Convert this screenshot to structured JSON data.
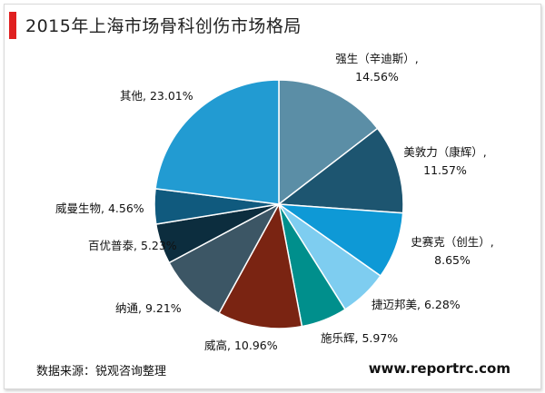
{
  "title": "2015年上海市场骨科创伤市场格局",
  "source": "数据来源：锐观咨询整理",
  "site": "www.reportrc.com",
  "chart_data": {
    "type": "pie",
    "title": "2015年上海市场骨科创伤市场格局",
    "slices": [
      {
        "label_lines": [
          "强生（辛迪斯）,",
          "14.56%"
        ],
        "name": "强生（辛迪斯）",
        "value": 14.56,
        "color": "#5b8ea6"
      },
      {
        "label_lines": [
          "美敦力（康辉）,",
          "11.57%"
        ],
        "name": "美敦力（康辉）",
        "value": 11.57,
        "color": "#1d5570"
      },
      {
        "label_lines": [
          "史赛克（创生）,",
          "8.65%"
        ],
        "name": "史赛克（创生）",
        "value": 8.65,
        "color": "#0e99d6"
      },
      {
        "label_lines": [
          "捷迈邦美, 6.28%"
        ],
        "name": "捷迈邦美",
        "value": 6.28,
        "color": "#7ecdf0"
      },
      {
        "label_lines": [
          "施乐辉, 5.97%"
        ],
        "name": "施乐辉",
        "value": 5.97,
        "color": "#008f8c"
      },
      {
        "label_lines": [
          "威高, 10.96%"
        ],
        "name": "威高",
        "value": 10.96,
        "color": "#7a2412"
      },
      {
        "label_lines": [
          "纳通, 9.21%"
        ],
        "name": "纳通",
        "value": 9.21,
        "color": "#3c5665"
      },
      {
        "label_lines": [
          "百优普泰, 5.23%"
        ],
        "name": "百优普泰",
        "value": 5.23,
        "color": "#0c2d3e"
      },
      {
        "label_lines": [
          "威曼生物, 4.56%"
        ],
        "name": "威曼生物",
        "value": 4.56,
        "color": "#105a7e"
      },
      {
        "label_lines": [
          "其他, 23.01%"
        ],
        "name": "其他",
        "value": 23.01,
        "color": "#229bd2"
      }
    ]
  }
}
